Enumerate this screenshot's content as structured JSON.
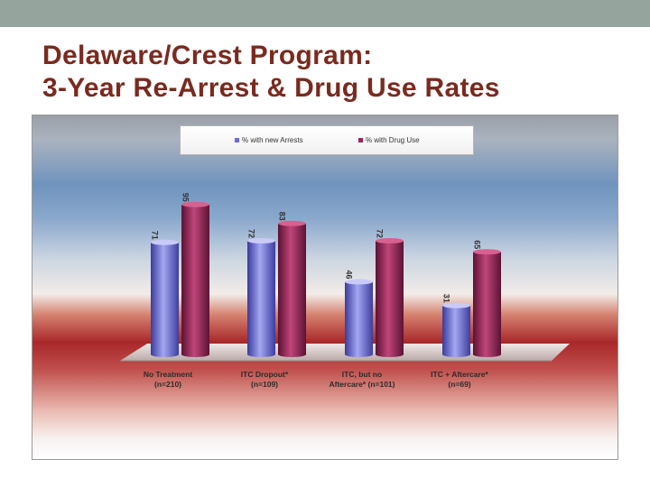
{
  "slide": {
    "title_lines": [
      "Delaware/Crest Program:",
      "3-Year Re-Arrest & Drug Use Rates"
    ]
  },
  "colors": {
    "top_bar": "#95a59d",
    "title": "#7a2a1f",
    "arrests_series": "#6a6ad8",
    "drug_series": "#a0245a"
  },
  "chart_data": {
    "type": "bar",
    "categories": [
      [
        "No Treatment",
        "(n=210)"
      ],
      [
        "ITC Dropout*",
        "(n=109)"
      ],
      [
        "ITC, but no",
        "Aftercare* (n=101)"
      ],
      [
        "ITC + Aftercare*",
        "(n=69)"
      ]
    ],
    "series": [
      {
        "name": "% with new Arrests",
        "values": [
          71,
          72,
          46,
          31
        ],
        "labels": [
          "71",
          "72",
          "46",
          "31"
        ]
      },
      {
        "name": "% with Drug Use",
        "values": [
          95,
          83,
          72,
          65
        ],
        "labels": [
          "95",
          "83",
          "72",
          "65"
        ]
      }
    ],
    "ylim": [
      0,
      100
    ],
    "legend_position": "top",
    "grid": false,
    "title": "",
    "xlabel": "",
    "ylabel": ""
  }
}
